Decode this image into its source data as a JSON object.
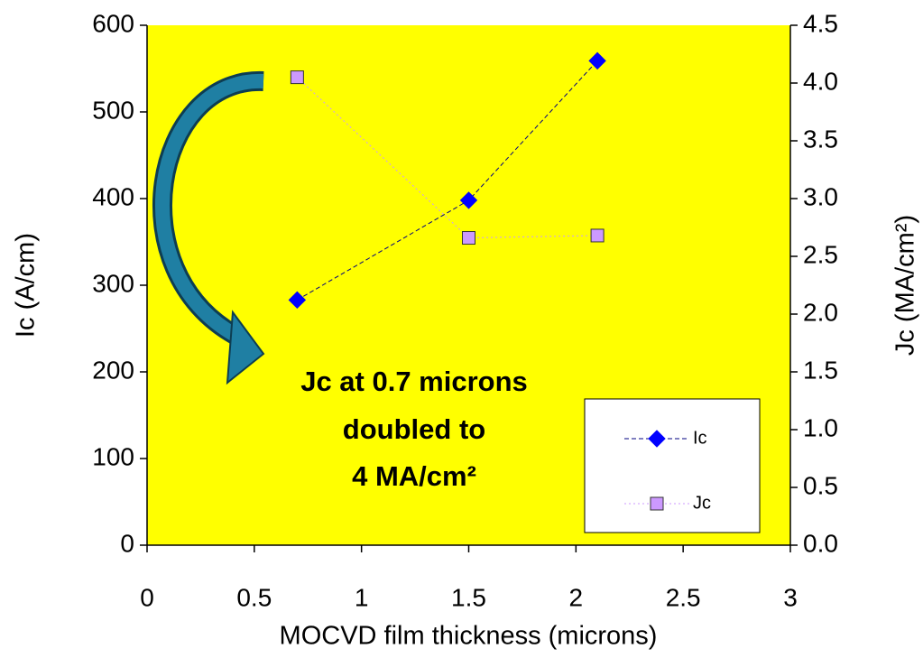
{
  "chart_data": {
    "type": "line",
    "x_label": "MOCVD film thickness (microns)",
    "y_label": "Ic (A/cm)",
    "y2_label": "Jc (MA/cm²)",
    "annotation": [
      "Jc at 0.7 microns",
      "doubled to",
      "4 MA/cm²"
    ],
    "x": [
      0.7,
      1.5,
      2.1
    ],
    "series": [
      {
        "name": "Ic",
        "color": "#0000ff",
        "values": [
          283,
          398,
          559
        ]
      },
      {
        "name": "Jc",
        "color": "#cc99ff",
        "axis": "y2",
        "values": [
          4.05,
          2.66,
          2.68
        ]
      }
    ],
    "xlim": [
      0,
      3
    ],
    "xticks": [
      0,
      0.5,
      1,
      1.5,
      2,
      2.5,
      3
    ],
    "ylim": [
      0,
      600
    ],
    "yticks": [
      0,
      100,
      200,
      300,
      400,
      500,
      600
    ],
    "y2lim": [
      0,
      4.5
    ],
    "y2ticks": [
      {
        "value": 0,
        "label": "0.0"
      },
      0.5,
      {
        "value": 1,
        "label": "1.0"
      },
      1.5,
      {
        "value": 2,
        "label": "2.0"
      },
      2.5,
      {
        "value": 3,
        "label": "3.0"
      },
      3.5,
      {
        "value": 4,
        "label": "4.0"
      },
      4.5
    ],
    "plot_background": "#ffff00"
  }
}
